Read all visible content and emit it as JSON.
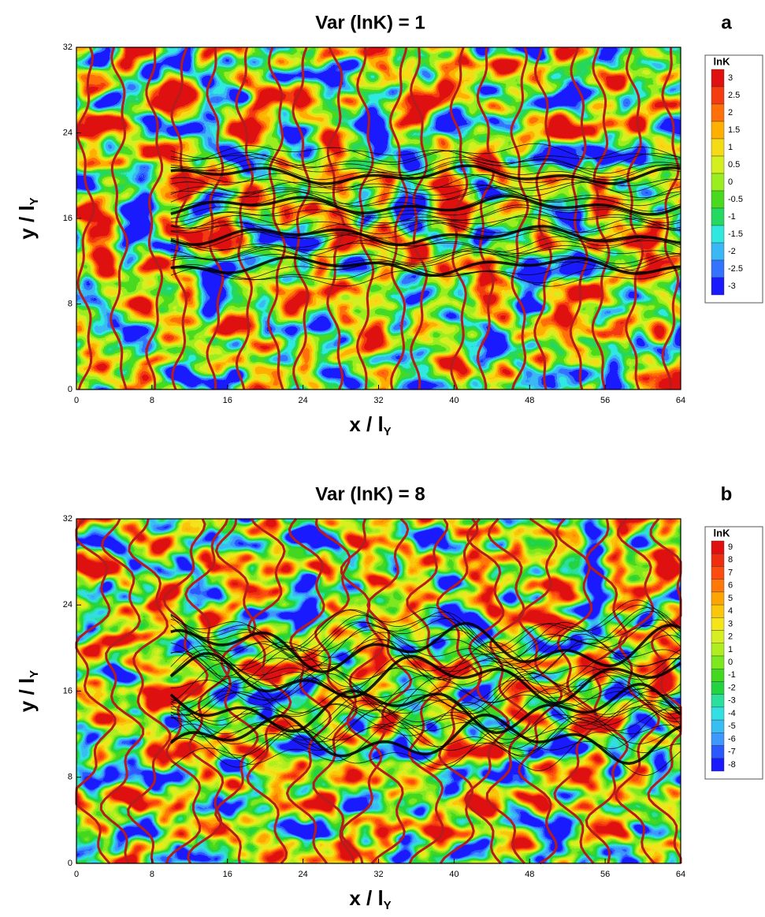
{
  "chart_data": [
    {
      "type": "contour",
      "title": "Var (lnK) = 1",
      "panel_label": "a",
      "x_label": "x / l",
      "x_label_sub": "Y",
      "y_label": "y / l",
      "y_label_sub": "Y",
      "xlim": [
        0,
        64
      ],
      "ylim": [
        0,
        32
      ],
      "xticks": [
        0,
        8,
        16,
        24,
        32,
        40,
        48,
        56,
        64
      ],
      "yticks": [
        0,
        8,
        16,
        24,
        32
      ],
      "colorbar_title": "lnK",
      "colorbar_ticks": [
        3,
        2.5,
        2,
        1.5,
        1,
        0.5,
        0,
        -0.5,
        -1,
        -1.5,
        -2,
        -2.5,
        -3
      ],
      "colormap": [
        "#1a1aff",
        "#3fa0ff",
        "#30e8e0",
        "#20d020",
        "#9aee20",
        "#f0f020",
        "#ffb000",
        "#ff5010",
        "#e01010"
      ]
    },
    {
      "type": "contour",
      "title": "Var (lnK) = 8",
      "panel_label": "b",
      "x_label": "x / l",
      "x_label_sub": "Y",
      "y_label": "y / l",
      "y_label_sub": "Y",
      "xlim": [
        0,
        64
      ],
      "ylim": [
        0,
        32
      ],
      "xticks": [
        0,
        8,
        16,
        24,
        32,
        40,
        48,
        56,
        64
      ],
      "yticks": [
        0,
        8,
        16,
        24,
        32
      ],
      "colorbar_title": "lnK",
      "colorbar_ticks": [
        9,
        8,
        7,
        6,
        5,
        4,
        3,
        2,
        1,
        0,
        -1,
        -2,
        -3,
        -4,
        -5,
        -6,
        -7,
        -8
      ],
      "colormap": [
        "#1a1aff",
        "#3fa0ff",
        "#30e8e0",
        "#20d020",
        "#9aee20",
        "#f0f020",
        "#ffb000",
        "#ff5010",
        "#e01010"
      ]
    }
  ]
}
